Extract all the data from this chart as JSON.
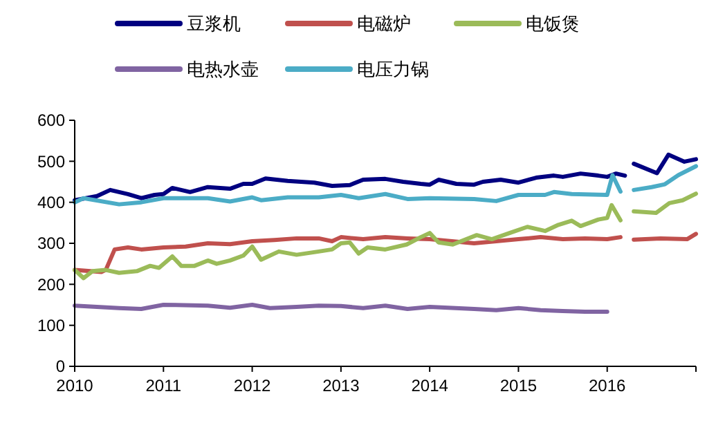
{
  "chart_data": {
    "type": "line",
    "xlim": [
      2010,
      2017
    ],
    "xticks": [
      2010,
      2011,
      2012,
      2013,
      2014,
      2015,
      2016,
      {
        "value": 2017,
        "label": null
      }
    ],
    "ylim": [
      0,
      600
    ],
    "yticks": [
      0,
      100,
      200,
      300,
      400,
      500,
      600
    ],
    "grid": false,
    "legend": "top",
    "marker": "none",
    "line_style": "solid",
    "series": [
      {
        "name": "豆浆机",
        "color": "#000080",
        "x": [
          2010,
          2010.25,
          2010.4,
          2010.6,
          2010.75,
          2010.9,
          2011,
          2011.1,
          2011.3,
          2011.5,
          2011.75,
          2011.9,
          2012,
          2012.15,
          2012.4,
          2012.7,
          2012.9,
          2013.1,
          2013.25,
          2013.5,
          2013.7,
          2013.9,
          2014,
          2014.1,
          2014.3,
          2014.5,
          2014.6,
          2014.8,
          2015,
          2015.2,
          2015.4,
          2015.5,
          2015.7,
          2015.9,
          2016,
          2016.1,
          2016.2,
          2016.25,
          2016.3,
          2016.56,
          2016.69,
          2016.87,
          2017
        ],
        "values": [
          405,
          415,
          430,
          420,
          410,
          418,
          420,
          435,
          425,
          437,
          433,
          445,
          445,
          458,
          452,
          448,
          440,
          442,
          455,
          457,
          450,
          445,
          443,
          455,
          445,
          443,
          450,
          455,
          448,
          460,
          465,
          462,
          470,
          465,
          462,
          470,
          465,
          null,
          494,
          471,
          516,
          499,
          505
        ]
      },
      {
        "name": "电磁炉",
        "color": "#c0504d",
        "x": [
          2010,
          2010.3,
          2010.35,
          2010.45,
          2010.6,
          2010.75,
          2011,
          2011.25,
          2011.5,
          2011.75,
          2012,
          2012.25,
          2012.5,
          2012.75,
          2012.9,
          2013,
          2013.25,
          2013.5,
          2013.75,
          2014,
          2014.5,
          2014.75,
          2015,
          2015.25,
          2015.5,
          2015.75,
          2016,
          2016.15,
          2016.25,
          2016.3,
          2016.6,
          2016.9,
          2017
        ],
        "values": [
          235,
          230,
          235,
          285,
          290,
          285,
          290,
          292,
          300,
          298,
          305,
          308,
          312,
          312,
          305,
          315,
          310,
          315,
          312,
          310,
          300,
          305,
          310,
          315,
          310,
          312,
          310,
          315,
          null,
          309,
          312,
          310,
          323
        ]
      },
      {
        "name": "电饭煲",
        "color": "#9bbb59",
        "x": [
          2010,
          2010.1,
          2010.2,
          2010.35,
          2010.5,
          2010.7,
          2010.85,
          2010.95,
          2011.1,
          2011.2,
          2011.35,
          2011.5,
          2011.6,
          2011.75,
          2011.9,
          2012,
          2012.1,
          2012.3,
          2012.5,
          2012.75,
          2012.9,
          2013,
          2013.1,
          2013.2,
          2013.3,
          2013.5,
          2013.74,
          2013.9,
          2014,
          2014.1,
          2014.26,
          2014.53,
          2014.7,
          2014.9,
          2015.1,
          2015.3,
          2015.45,
          2015.6,
          2015.7,
          2015.9,
          2016,
          2016.05,
          2016.15,
          2016.25,
          2016.3,
          2016.55,
          2016.7,
          2016.85,
          2017
        ],
        "values": [
          235,
          215,
          232,
          235,
          228,
          232,
          245,
          240,
          268,
          245,
          245,
          258,
          250,
          258,
          270,
          292,
          260,
          280,
          272,
          280,
          285,
          300,
          302,
          275,
          290,
          285,
          297,
          315,
          325,
          302,
          297,
          320,
          310,
          325,
          340,
          330,
          345,
          355,
          342,
          358,
          362,
          393,
          356,
          null,
          378,
          374,
          398,
          405,
          421
        ]
      },
      {
        "name": "电热水壶",
        "color": "#8064a2",
        "x": [
          2010,
          2010.5,
          2010.75,
          2011,
          2011.5,
          2011.75,
          2012,
          2012.2,
          2012.5,
          2012.75,
          2013,
          2013.25,
          2013.5,
          2013.75,
          2014,
          2014.5,
          2014.75,
          2015,
          2015.25,
          2015.5,
          2015.75,
          2016
        ],
        "values": [
          148,
          142,
          140,
          150,
          148,
          143,
          150,
          142,
          145,
          148,
          147,
          142,
          148,
          140,
          145,
          140,
          137,
          142,
          137,
          135,
          133,
          133
        ]
      },
      {
        "name": "电压力锅",
        "color": "#4bacc6",
        "x": [
          2010,
          2010.1,
          2010.5,
          2010.75,
          2011,
          2011.5,
          2011.75,
          2012,
          2012.1,
          2012.4,
          2012.75,
          2013,
          2013.2,
          2013.5,
          2013.75,
          2014,
          2014.5,
          2014.75,
          2015,
          2015.3,
          2015.4,
          2015.6,
          2016,
          2016.06,
          2016.15,
          2016.25,
          2016.3,
          2016.5,
          2016.65,
          2016.8,
          2017
        ],
        "values": [
          400,
          410,
          395,
          400,
          410,
          410,
          402,
          412,
          405,
          412,
          412,
          418,
          410,
          420,
          408,
          410,
          408,
          403,
          418,
          418,
          425,
          420,
          418,
          466,
          426,
          null,
          430,
          437,
          444,
          466,
          488
        ]
      }
    ]
  }
}
